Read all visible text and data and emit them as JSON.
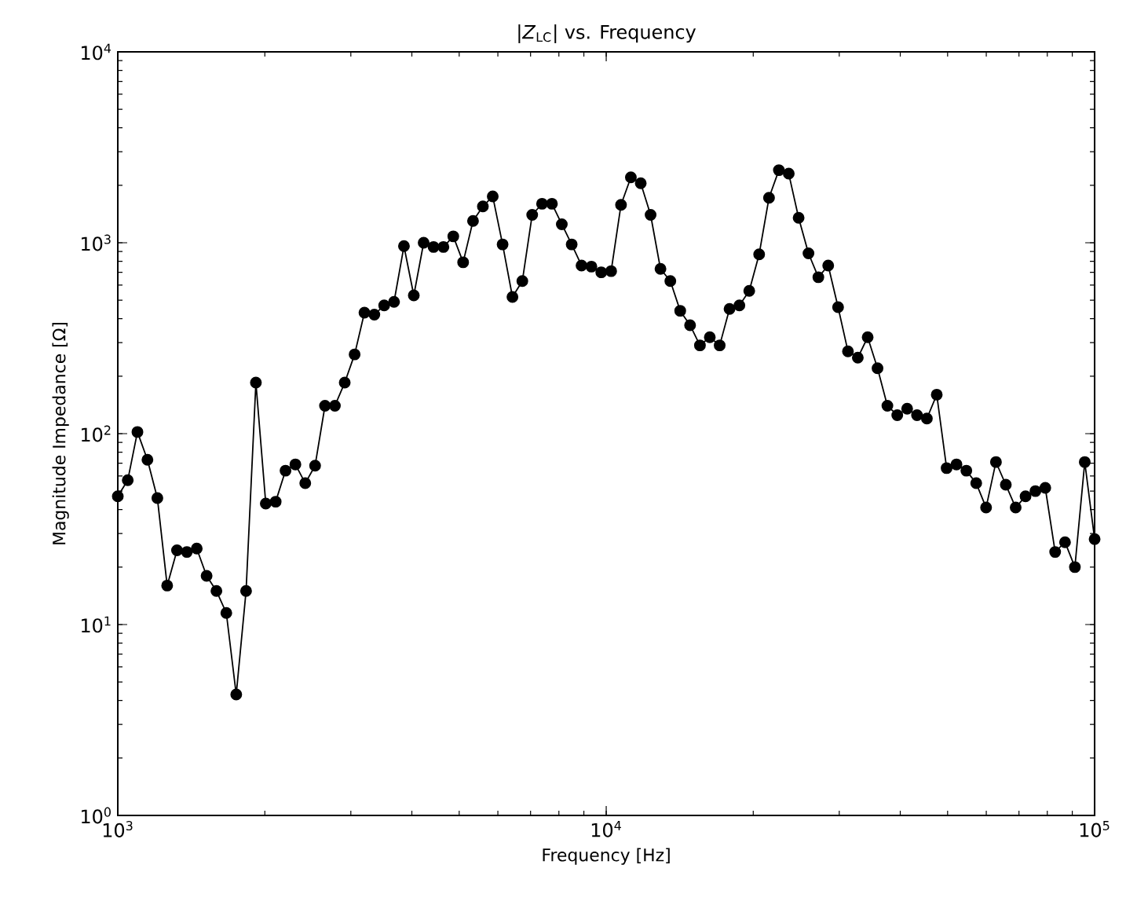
{
  "chart_data": {
    "type": "line",
    "title": "|*Z*$_{LC}$| vs. Frequency",
    "xlabel": "Frequency [Hz]",
    "ylabel": "Magnitude Impedance [Ω]",
    "log": "xy",
    "grid": false,
    "marker": "circle",
    "line_style": "solid",
    "color": "#000000",
    "xlim": [
      1000,
      100000
    ],
    "ylim": [
      1,
      10000
    ],
    "xticks": [
      {
        "value": 1000,
        "label": "10$^{3}$"
      },
      {
        "value": 10000,
        "label": "10$^{4}$"
      },
      {
        "value": 100000,
        "label": "10$^{5}$"
      }
    ],
    "yticks": [
      {
        "value": 1,
        "label": "10$^{0}$"
      },
      {
        "value": 10,
        "label": "10$^{1}$"
      },
      {
        "value": 100,
        "label": "10$^{2}$"
      },
      {
        "value": 1000,
        "label": "10$^{3}$"
      },
      {
        "value": 10000,
        "label": "10$^{4}$"
      }
    ],
    "x": [
      1000,
      1048,
      1097,
      1150,
      1205,
      1262,
      1322,
      1385,
      1451,
      1520,
      1592,
      1668,
      1748,
      1831,
      1918,
      2009,
      2105,
      2205,
      2310,
      2420,
      2535,
      2656,
      2783,
      2915,
      3054,
      3199,
      3352,
      3511,
      3678,
      3854,
      4037,
      4229,
      4431,
      4642,
      4863,
      5094,
      5337,
      5591,
      5857,
      6136,
      6428,
      6734,
      7055,
      7391,
      7743,
      8111,
      8498,
      8902,
      9326,
      9770,
      10235,
      10723,
      11233,
      11768,
      12328,
      12915,
      13530,
      14175,
      14850,
      15557,
      16298,
      17074,
      17886,
      18738,
      19630,
      20565,
      21544,
      22570,
      23645,
      24771,
      25950,
      27186,
      28480,
      29836,
      31257,
      32745,
      34305,
      35938,
      37649,
      39442,
      41320,
      43288,
      45349,
      47508,
      49770,
      52140,
      54623,
      57224,
      59948,
      62803,
      65793,
      68926,
      72208,
      75646,
      79248,
      83022,
      86975,
      91116,
      95455,
      100000
    ],
    "values": [
      47,
      57,
      102,
      73,
      46,
      16,
      24.5,
      24,
      25,
      18,
      15,
      11.5,
      4.3,
      15,
      185,
      43,
      44,
      64,
      69,
      55,
      68,
      140,
      140,
      185,
      260,
      430,
      420,
      470,
      490,
      960,
      530,
      1000,
      950,
      950,
      1080,
      790,
      1300,
      1550,
      1750,
      980,
      520,
      630,
      1400,
      1600,
      1600,
      1250,
      980,
      760,
      750,
      700,
      710,
      1580,
      2200,
      2050,
      1400,
      730,
      630,
      440,
      370,
      290,
      320,
      290,
      450,
      470,
      560,
      870,
      1720,
      2400,
      2300,
      1350,
      880,
      660,
      760,
      460,
      270,
      250,
      320,
      220,
      140,
      125,
      135,
      125,
      120,
      160,
      66,
      69,
      64,
      55,
      41,
      71,
      54,
      41,
      47,
      50,
      52,
      24,
      27,
      20,
      71,
      28
    ]
  }
}
